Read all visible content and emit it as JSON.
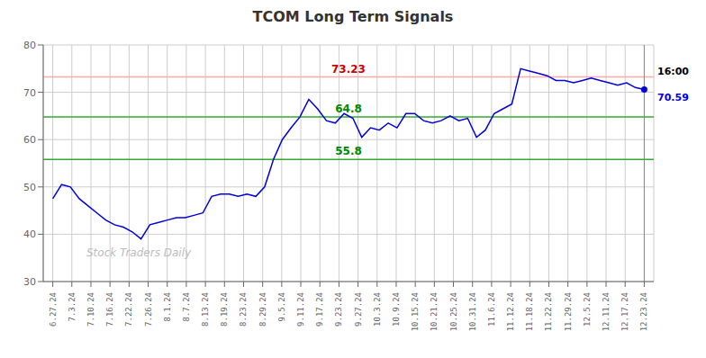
{
  "chart_data": {
    "type": "line",
    "title": "TCOM Long Term Signals",
    "color": "#0000dd",
    "grid": true,
    "x": [
      0,
      0.462687,
      0.925373,
      1.38806,
      1.850746,
      2.313433,
      2.776119,
      3.238806,
      3.701493,
      4.164179,
      4.626866,
      5.089552,
      5.552239,
      6.014925,
      6.477612,
      6.940299,
      7.402985,
      7.865672,
      8.328358,
      8.791045,
      9.253731,
      9.716418,
      10.179104,
      10.641791,
      11.104478,
      11.567164,
      12.029851,
      12.492537,
      12.955224,
      13.41791,
      13.880597,
      14.343284,
      14.80597,
      15.268657,
      15.731343,
      16.19403,
      16.656716,
      17.119403,
      17.58209,
      18.044776,
      18.507463,
      18.970149,
      19.432836,
      19.895522,
      20.358209,
      20.820896,
      21.283582,
      21.746269,
      22.208955,
      22.671642,
      23.134328,
      23.597015,
      24.059701,
      24.522388,
      24.985075,
      25.447761,
      25.910448,
      26.373134,
      26.835821,
      27.298507,
      27.761194,
      28.223881,
      28.686567,
      29.149254,
      29.61194,
      30.074627,
      30.537313,
      31
    ],
    "values": [
      47.5,
      50.5,
      50.0,
      47.5,
      46.0,
      44.5,
      43.0,
      42.0,
      41.5,
      40.5,
      39.0,
      42.0,
      42.5,
      43.0,
      43.5,
      43.5,
      44.0,
      44.5,
      48.0,
      48.5,
      48.5,
      48.0,
      48.5,
      48.0,
      50.0,
      55.8,
      60.0,
      62.5,
      64.8,
      68.5,
      66.5,
      64.0,
      63.5,
      65.5,
      64.5,
      60.5,
      62.5,
      62.0,
      63.5,
      62.5,
      65.5,
      65.5,
      64.0,
      63.5,
      64.0,
      65.0,
      64.0,
      64.5,
      60.5,
      62.0,
      65.5,
      66.5,
      67.5,
      75.0,
      74.5,
      74.0,
      73.5,
      72.5,
      72.5,
      72.0,
      72.5,
      73.0,
      72.5,
      72.0,
      71.5,
      72.0,
      71.0,
      70.59
    ],
    "xlim": [
      -0.5,
      31.5
    ],
    "xticks": [
      {
        "value": 0,
        "label": "6.27.24"
      },
      {
        "value": 1,
        "label": "7.3.24"
      },
      {
        "value": 2,
        "label": "7.10.24"
      },
      {
        "value": 3,
        "label": "7.16.24"
      },
      {
        "value": 4,
        "label": "7.22.24"
      },
      {
        "value": 5,
        "label": "7.26.24"
      },
      {
        "value": 6,
        "label": "8.1.24"
      },
      {
        "value": 7,
        "label": "8.7.24"
      },
      {
        "value": 8,
        "label": "8.13.24"
      },
      {
        "value": 9,
        "label": "8.19.24"
      },
      {
        "value": 10,
        "label": "8.23.24"
      },
      {
        "value": 11,
        "label": "8.29.24"
      },
      {
        "value": 12,
        "label": "9.5.24"
      },
      {
        "value": 13,
        "label": "9.11.24"
      },
      {
        "value": 14,
        "label": "9.17.24"
      },
      {
        "value": 15,
        "label": "9.23.24"
      },
      {
        "value": 16,
        "label": "9.27.24"
      },
      {
        "value": 17,
        "label": "10.3.24"
      },
      {
        "value": 18,
        "label": "10.9.24"
      },
      {
        "value": 19,
        "label": "10.15.24"
      },
      {
        "value": 20,
        "label": "10.21.24"
      },
      {
        "value": 21,
        "label": "10.25.24"
      },
      {
        "value": 22,
        "label": "10.31.24"
      },
      {
        "value": 23,
        "label": "11.6.24"
      },
      {
        "value": 24,
        "label": "11.12.24"
      },
      {
        "value": 25,
        "label": "11.18.24"
      },
      {
        "value": 26,
        "label": "11.22.24"
      },
      {
        "value": 27,
        "label": "11.29.24"
      },
      {
        "value": 28,
        "label": "12.5.24"
      },
      {
        "value": 29,
        "label": "12.11.24"
      },
      {
        "value": 30,
        "label": "12.17.24"
      },
      {
        "value": 31,
        "label": "12.23.24"
      }
    ],
    "ylim": [
      30,
      80
    ],
    "yticks": [
      30,
      40,
      50,
      60,
      70,
      80
    ],
    "annotations": [
      {
        "text": "73.23",
        "y": 73.23,
        "color": "#cc0000",
        "line_color": "#ffaaaa"
      },
      {
        "text": "64.8",
        "y": 64.8,
        "color": "#008800",
        "line_color": "#33aa33"
      },
      {
        "text": "55.8",
        "y": 55.8,
        "color": "#008800",
        "line_color": "#33aa33"
      },
      {
        "text": "70.59",
        "y": 70.59,
        "color": "#0000dd"
      },
      {
        "text": "16:00"
      },
      {
        "text": "Stock Traders Daily",
        "color": "#bbbbbb"
      }
    ]
  }
}
